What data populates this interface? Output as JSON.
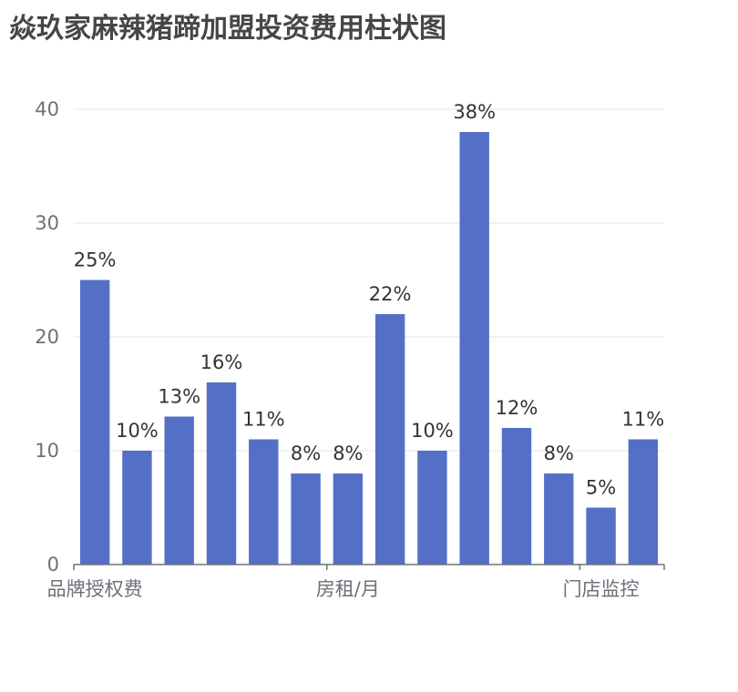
{
  "chart_data": {
    "type": "bar",
    "title": "焱玖家麻辣猪蹄加盟投资费用柱状图",
    "categories": [
      "品牌授权费",
      "",
      "",
      "",
      "",
      "",
      "房租/月",
      "",
      "",
      "",
      "",
      "",
      "门店监控",
      ""
    ],
    "values": [
      25,
      10,
      13,
      16,
      11,
      8,
      8,
      22,
      10,
      38,
      12,
      8,
      5,
      11
    ],
    "data_labels": [
      "25%",
      "10%",
      "13%",
      "16%",
      "11%",
      "8%",
      "8%",
      "22%",
      "10%",
      "38%",
      "12%",
      "8%",
      "5%",
      "11%"
    ],
    "ylim": [
      0,
      40
    ],
    "yticks": [
      0,
      10,
      20,
      30,
      40
    ],
    "xlabel": "",
    "ylabel": "",
    "grid": true,
    "colors": {
      "bar": "#5470c6",
      "grid": "#e0e6f1",
      "axis": "#6e7079"
    }
  }
}
